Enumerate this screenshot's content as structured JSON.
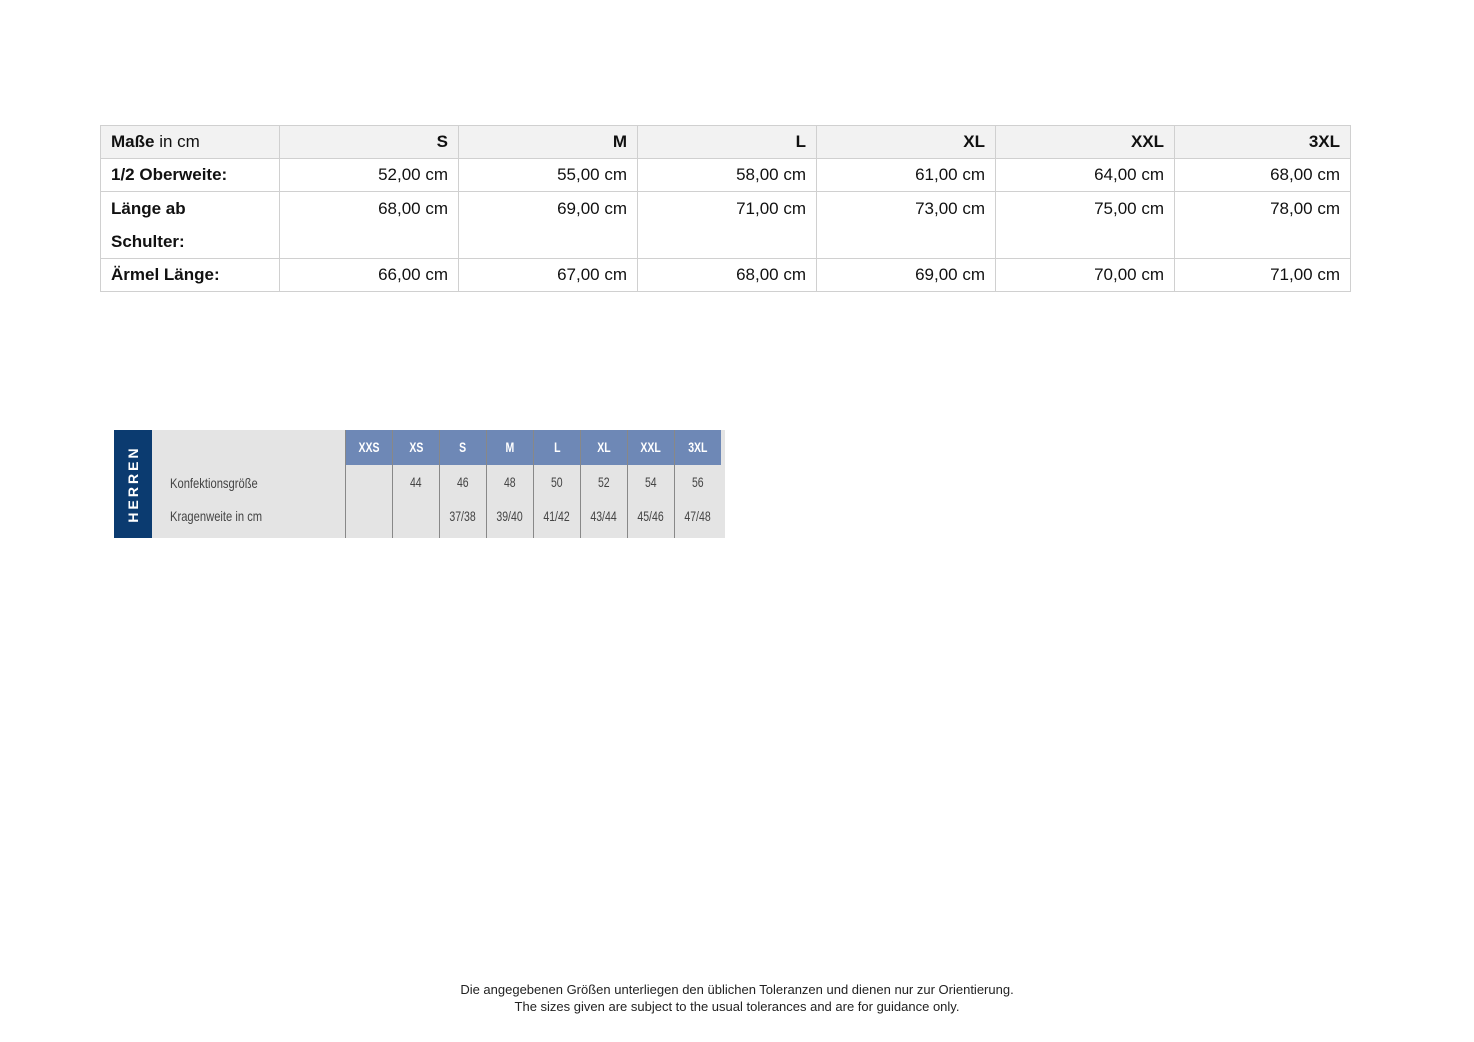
{
  "measurements": {
    "header_bold": "Maße",
    "header_rest": " in cm",
    "sizes": [
      "S",
      "M",
      "L",
      "XL",
      "XXL",
      "3XL"
    ],
    "rows": [
      {
        "label": "1/2 Oberweite:",
        "values": [
          "52,00 cm",
          "55,00 cm",
          "58,00 cm",
          "61,00 cm",
          "64,00 cm",
          "68,00 cm"
        ]
      },
      {
        "label_line1": "Länge ab",
        "label_line2": "Schulter:",
        "values": [
          "68,00 cm",
          "69,00 cm",
          "71,00 cm",
          "73,00 cm",
          "75,00 cm",
          "78,00 cm"
        ]
      },
      {
        "label": "Ärmel Länge:",
        "values": [
          "66,00 cm",
          "67,00 cm",
          "68,00 cm",
          "69,00 cm",
          "70,00 cm",
          "71,00 cm"
        ]
      }
    ]
  },
  "herren": {
    "side_label": "HERREN",
    "row_labels": [
      "Konfektionsgröße",
      "Kragenweite in cm"
    ],
    "sizes": [
      "XXS",
      "XS",
      "S",
      "M",
      "L",
      "XL",
      "XXL",
      "3XL"
    ],
    "konfektion": [
      "",
      "44",
      "46",
      "48",
      "50",
      "52",
      "54",
      "56"
    ],
    "kragen": [
      "",
      "",
      "37/38",
      "39/40",
      "41/42",
      "43/44",
      "45/46",
      "47/48"
    ],
    "colors": {
      "side": "#0b3b70",
      "header": "#6e88b6",
      "background": "#e4e4e4"
    }
  },
  "footer": {
    "de": "Die angegebenen Größen unterliegen den üblichen Toleranzen und dienen nur zur Orientierung.",
    "en": "The sizes given are subject to the usual tolerances and are for guidance only."
  }
}
